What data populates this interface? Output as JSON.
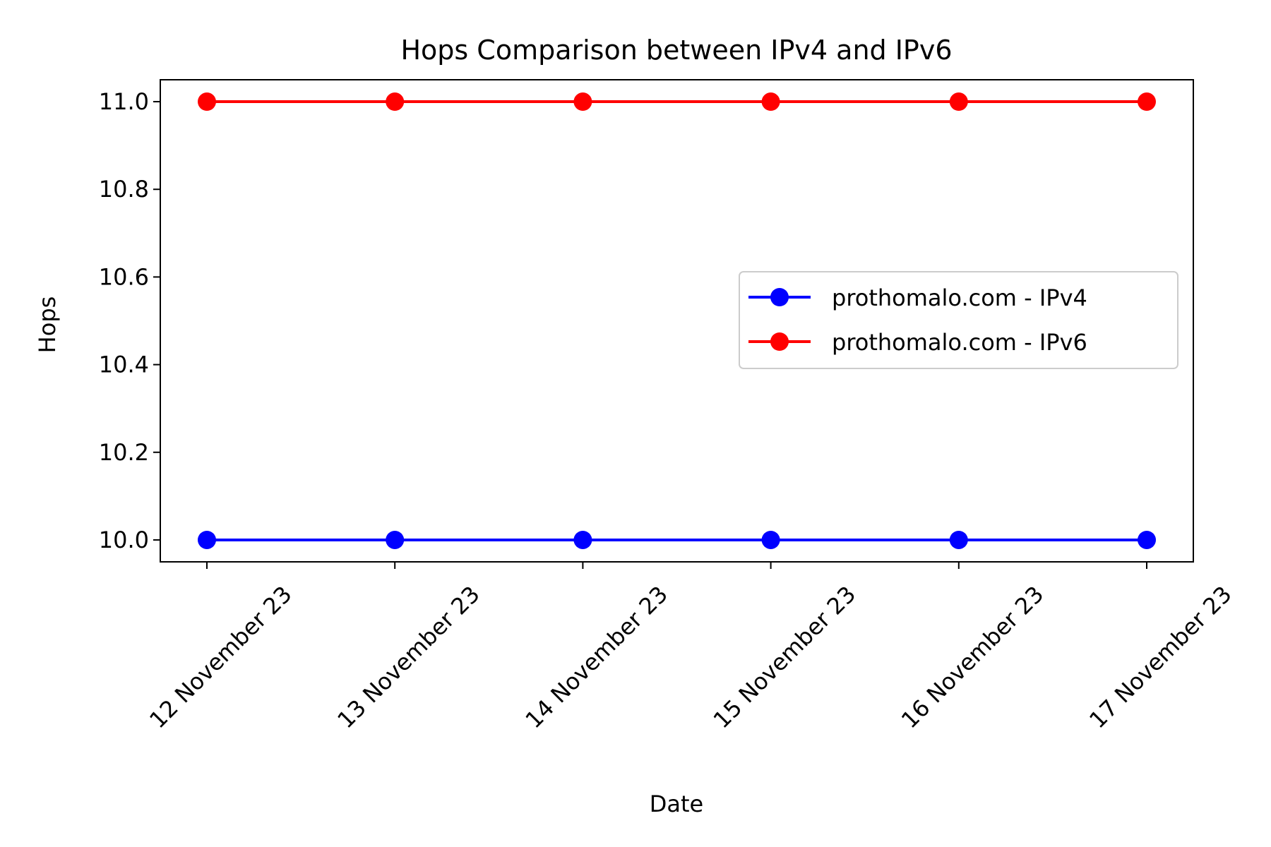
{
  "chart_data": {
    "type": "line",
    "title": "Hops Comparison between IPv4 and IPv6",
    "xlabel": "Date",
    "ylabel": "Hops",
    "categories": [
      "12 November 23",
      "13 November 23",
      "14 November 23",
      "15 November 23",
      "16 November 23",
      "17 November 23"
    ],
    "series": [
      {
        "name": "prothomalo.com - IPv4",
        "color": "#0000ff",
        "values": [
          10,
          10,
          10,
          10,
          10,
          10
        ]
      },
      {
        "name": "prothomalo.com - IPv6",
        "color": "#ff0000",
        "values": [
          11,
          11,
          11,
          11,
          11,
          11
        ]
      }
    ],
    "ylim": [
      9.95,
      11.05
    ],
    "yticks": [
      "10.0",
      "10.2",
      "10.4",
      "10.6",
      "10.8",
      "11.0"
    ],
    "grid": false,
    "legend_position": "center-right"
  }
}
